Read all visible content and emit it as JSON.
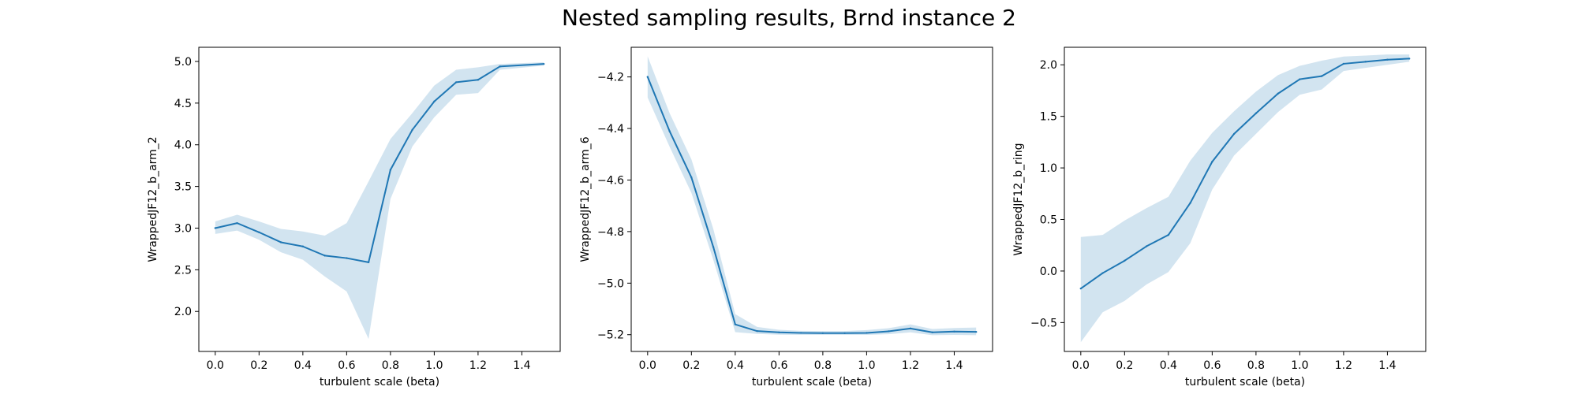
{
  "figure": {
    "title": "Nested sampling results, Brnd instance 2"
  },
  "colors": {
    "line": "#1f77b4",
    "band": "#1f77b4",
    "axes": "#000000"
  },
  "chart_data": [
    {
      "type": "line",
      "xlabel": "turbulent scale (beta)",
      "ylabel": "WrappedJF12_b_arm_2",
      "xlim": [
        -0.075,
        1.575
      ],
      "ylim": [
        1.52,
        5.17
      ],
      "xticks": [
        0.0,
        0.2,
        0.4,
        0.6,
        0.8,
        1.0,
        1.2,
        1.4
      ],
      "xtick_labels": [
        "0.0",
        "0.2",
        "0.4",
        "0.6",
        "0.8",
        "1.0",
        "1.2",
        "1.4"
      ],
      "yticks": [
        2.0,
        2.5,
        3.0,
        3.5,
        4.0,
        4.5,
        5.0
      ],
      "ytick_labels": [
        "2.0",
        "2.5",
        "3.0",
        "3.5",
        "4.0",
        "4.5",
        "5.0"
      ],
      "x": [
        0.0,
        0.1,
        0.2,
        0.3,
        0.4,
        0.5,
        0.6,
        0.7,
        0.8,
        0.9,
        1.0,
        1.1,
        1.2,
        1.3,
        1.5
      ],
      "series": [
        {
          "values": [
            3.0,
            3.06,
            2.95,
            2.83,
            2.78,
            2.67,
            2.64,
            2.59,
            3.7,
            4.18,
            4.52,
            4.75,
            4.78,
            4.94,
            4.97
          ],
          "lower": [
            2.93,
            2.97,
            2.86,
            2.71,
            2.62,
            2.42,
            2.24,
            1.67,
            3.35,
            3.98,
            4.33,
            4.6,
            4.62,
            4.9,
            4.95
          ],
          "upper": [
            3.08,
            3.16,
            3.08,
            2.99,
            2.96,
            2.91,
            3.06,
            3.56,
            4.07,
            4.38,
            4.71,
            4.9,
            4.93,
            4.97,
            4.99
          ]
        }
      ]
    },
    {
      "type": "line",
      "xlabel": "turbulent scale (beta)",
      "ylabel": "WrappedJF12_b_arm_6",
      "xlim": [
        -0.075,
        1.575
      ],
      "ylim": [
        -5.265,
        -4.085
      ],
      "xticks": [
        0.0,
        0.2,
        0.4,
        0.6,
        0.8,
        1.0,
        1.2,
        1.4
      ],
      "xtick_labels": [
        "0.0",
        "0.2",
        "0.4",
        "0.6",
        "0.8",
        "1.0",
        "1.2",
        "1.4"
      ],
      "yticks": [
        -5.2,
        -5.0,
        -4.8,
        -4.6,
        -4.4,
        -4.2
      ],
      "ytick_labels": [
        "−5.2",
        "−5.0",
        "−4.8",
        "−4.6",
        "−4.4",
        "−4.2"
      ],
      "x": [
        0.0,
        0.1,
        0.2,
        0.3,
        0.4,
        0.5,
        0.6,
        0.7,
        0.8,
        0.9,
        1.0,
        1.1,
        1.2,
        1.3,
        1.4,
        1.5
      ],
      "series": [
        {
          "values": [
            -4.2,
            -4.41,
            -4.59,
            -4.86,
            -5.16,
            -5.186,
            -5.191,
            -5.193,
            -5.194,
            -5.194,
            -5.193,
            -5.187,
            -5.176,
            -5.191,
            -5.188,
            -5.189
          ],
          "lower": [
            -4.28,
            -4.47,
            -4.65,
            -4.91,
            -5.19,
            -5.197,
            -5.2,
            -5.201,
            -5.201,
            -5.201,
            -5.201,
            -5.198,
            -5.191,
            -5.202,
            -5.201,
            -5.202
          ],
          "upper": [
            -4.12,
            -4.34,
            -4.52,
            -4.79,
            -5.12,
            -5.17,
            -5.181,
            -5.185,
            -5.186,
            -5.186,
            -5.182,
            -5.175,
            -5.16,
            -5.178,
            -5.174,
            -5.172
          ]
        }
      ]
    },
    {
      "type": "line",
      "xlabel": "turbulent scale (beta)",
      "ylabel": "WrappedJF12_b_ring",
      "xlim": [
        -0.075,
        1.575
      ],
      "ylim": [
        -0.78,
        2.17
      ],
      "xticks": [
        0.0,
        0.2,
        0.4,
        0.6,
        0.8,
        1.0,
        1.2,
        1.4
      ],
      "xtick_labels": [
        "0.0",
        "0.2",
        "0.4",
        "0.6",
        "0.8",
        "1.0",
        "1.2",
        "1.4"
      ],
      "yticks": [
        -0.5,
        0.0,
        0.5,
        1.0,
        1.5,
        2.0
      ],
      "ytick_labels": [
        "−0.5",
        "0.0",
        "0.5",
        "1.0",
        "1.5",
        "2.0"
      ],
      "x": [
        0.0,
        0.1,
        0.2,
        0.3,
        0.4,
        0.5,
        0.6,
        0.7,
        0.8,
        0.9,
        1.0,
        1.1,
        1.2,
        1.3,
        1.4,
        1.5
      ],
      "series": [
        {
          "values": [
            -0.17,
            -0.02,
            0.1,
            0.24,
            0.35,
            0.66,
            1.06,
            1.33,
            1.53,
            1.72,
            1.86,
            1.89,
            2.01,
            2.03,
            2.05,
            2.06
          ],
          "lower": [
            -0.69,
            -0.4,
            -0.29,
            -0.13,
            -0.01,
            0.27,
            0.79,
            1.12,
            1.33,
            1.54,
            1.71,
            1.76,
            1.94,
            1.97,
            2.0,
            2.03
          ],
          "upper": [
            0.33,
            0.35,
            0.49,
            0.61,
            0.72,
            1.07,
            1.34,
            1.55,
            1.74,
            1.9,
            1.99,
            2.04,
            2.08,
            2.09,
            2.1,
            2.1
          ]
        }
      ]
    }
  ]
}
